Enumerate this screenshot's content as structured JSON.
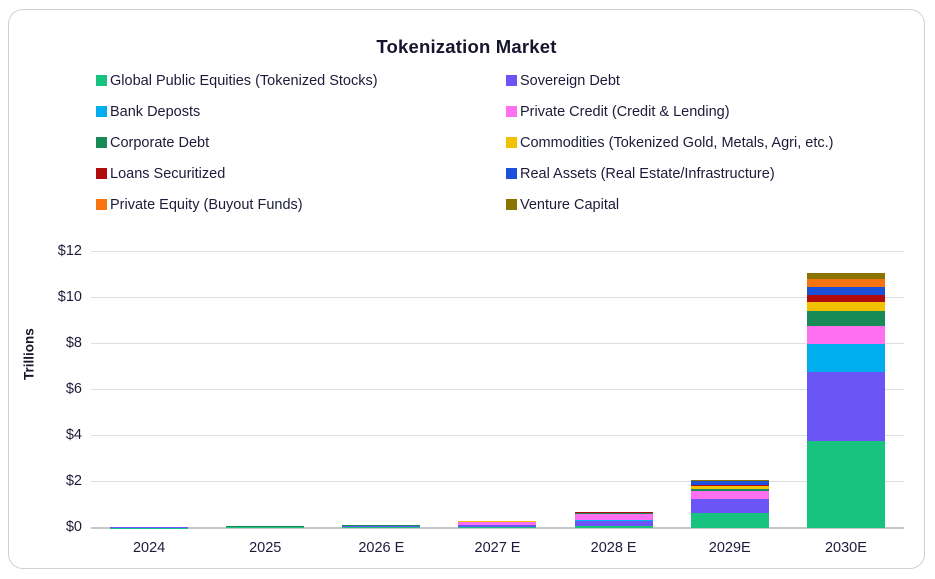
{
  "chart_data": {
    "type": "bar",
    "stacked": true,
    "title": "Tokenization Market",
    "ylabel": "Trillions",
    "unit": "USD Trillions",
    "ylim": [
      0,
      12
    ],
    "y_tick_step": 2,
    "y_ticks": [
      "$0",
      "$2",
      "$4",
      "$6",
      "$8",
      "$10",
      "$12"
    ],
    "grid": "horizontal",
    "legend_position": "top",
    "legend_columns": 2,
    "categories": [
      "2024",
      "2025",
      "2026 E",
      "2027 E",
      "2028 E",
      "2029E",
      "2030E"
    ],
    "series": [
      {
        "name": "Global Public Equities (Tokenized Stocks)",
        "color": "#17C37F",
        "values": [
          0.02,
          0.03,
          0.04,
          0.05,
          0.1,
          0.65,
          3.8
        ]
      },
      {
        "name": "Sovereign Debt",
        "color": "#6C55F6",
        "values": [
          0.02,
          0.02,
          0.04,
          0.08,
          0.2,
          0.6,
          3.0
        ]
      },
      {
        "name": "Bank Deposts",
        "color": "#00AEEF",
        "values": [
          0.005,
          0.005,
          0.01,
          0.02,
          0.05,
          0.02,
          1.2
        ]
      },
      {
        "name": "Private Credit (Credit & Lending)",
        "color": "#FF70F0",
        "values": [
          0.005,
          0.01,
          0.02,
          0.12,
          0.28,
          0.33,
          0.8
        ]
      },
      {
        "name": "Corporate Debt",
        "color": "#178A57",
        "values": [
          0.002,
          0.003,
          0.005,
          0.01,
          0.01,
          0.1,
          0.65
        ]
      },
      {
        "name": "Commodities (Tokenized Gold, Metals, Agri, etc.)",
        "color": "#F2C200",
        "values": [
          0.005,
          0.008,
          0.01,
          0.02,
          0.03,
          0.15,
          0.4
        ]
      },
      {
        "name": "Loans Securitized",
        "color": "#B00C0C",
        "values": [
          0.002,
          0.003,
          0.005,
          0.01,
          0.01,
          0.02,
          0.3
        ]
      },
      {
        "name": "Real Assets (Real Estate/Infrastructure)",
        "color": "#1D50D8",
        "values": [
          0.002,
          0.003,
          0.005,
          0.01,
          0.02,
          0.16,
          0.35
        ]
      },
      {
        "name": "Private Equity (Buyout Funds)",
        "color": "#F7740E",
        "values": [
          0.002,
          0.003,
          0.005,
          0.005,
          0.01,
          0.03,
          0.35
        ]
      },
      {
        "name": "Venture Capital",
        "color": "#8A7400",
        "values": [
          0.002,
          0.003,
          0.005,
          0.005,
          0.01,
          0.04,
          0.25
        ]
      }
    ],
    "colors": {
      "card_border": "#ccd2da",
      "background": "#ffffff",
      "text": "#1c1c3a",
      "gridline": "#dcdee2",
      "baseline": "#c3c7cd"
    }
  }
}
